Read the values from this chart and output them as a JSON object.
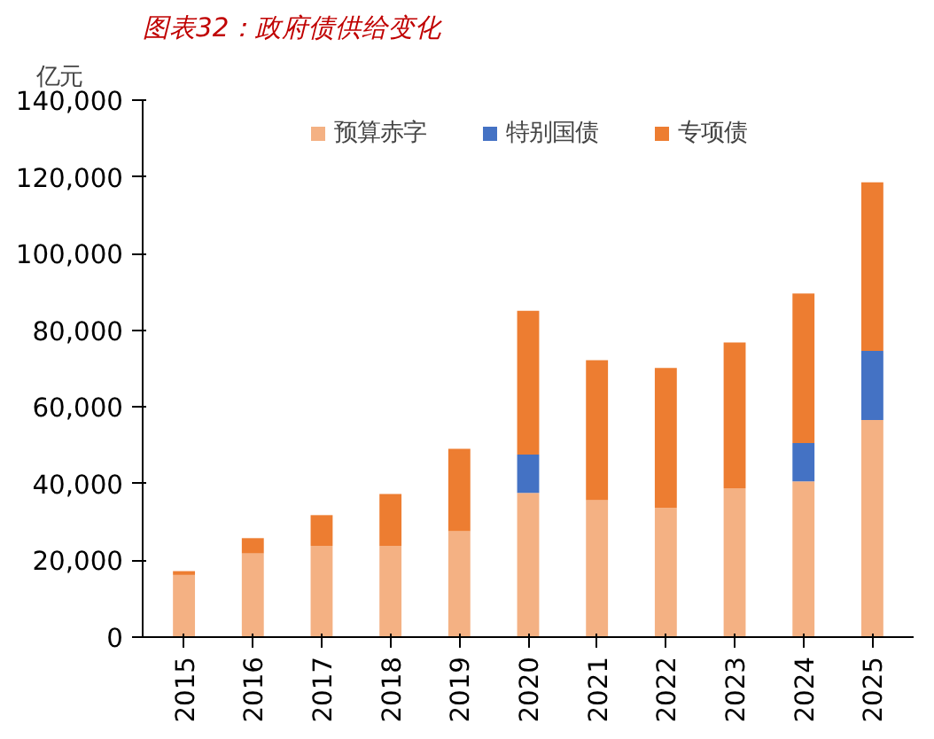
{
  "chart_data": {
    "type": "bar",
    "title": "图表32：政府债供给变化",
    "ylabel": "亿元",
    "stacked": true,
    "categories": [
      "2015",
      "2016",
      "2017",
      "2018",
      "2019",
      "2020",
      "2021",
      "2022",
      "2023",
      "2024",
      "2025"
    ],
    "series": [
      {
        "name": "预算赤字",
        "color": "#f4b183",
        "values": [
          16200,
          21800,
          23800,
          23800,
          27600,
          37600,
          35700,
          33700,
          38800,
          40600,
          56600
        ]
      },
      {
        "name": "特别国债",
        "color": "#4472c4",
        "values": [
          null,
          null,
          null,
          null,
          null,
          10000,
          null,
          null,
          null,
          10000,
          18000
        ]
      },
      {
        "name": "专项债",
        "color": "#ed7d31",
        "values": [
          1000,
          4000,
          8000,
          13500,
          21500,
          37500,
          36500,
          36500,
          38000,
          39000,
          44000
        ]
      }
    ],
    "ylim": [
      0,
      140000
    ],
    "yticks": [
      {
        "value": 0,
        "label": "0"
      },
      {
        "value": 20000,
        "label": "20,000"
      },
      {
        "value": 40000,
        "label": "40,000"
      },
      {
        "value": 60000,
        "label": "60,000"
      },
      {
        "value": 80000,
        "label": "80,000"
      },
      {
        "value": 100000,
        "label": "100,000"
      },
      {
        "value": 120000,
        "label": "120,000"
      },
      {
        "value": 140000,
        "label": "140,000"
      }
    ],
    "grid": false,
    "legend": "top"
  }
}
